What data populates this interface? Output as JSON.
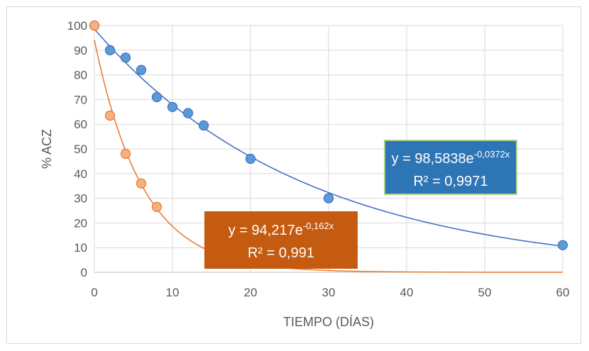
{
  "chart_data": {
    "type": "scatter",
    "xlabel": "TIEMPO (DÍAS)",
    "ylabel": "% ACZ",
    "xlim": [
      0,
      60
    ],
    "ylim": [
      0,
      100
    ],
    "xticks": [
      0,
      10,
      20,
      30,
      40,
      50,
      60
    ],
    "yticks": [
      0,
      10,
      20,
      30,
      40,
      50,
      60,
      70,
      80,
      90,
      100
    ],
    "grid": true,
    "legend": "none",
    "series": [
      {
        "color": "#5b9bd5",
        "line_color": "#4472c4",
        "points": [
          [
            0,
            100
          ],
          [
            2,
            90
          ],
          [
            4,
            87
          ],
          [
            6,
            82
          ],
          [
            8,
            71
          ],
          [
            10,
            67
          ],
          [
            12,
            64.5
          ],
          [
            14,
            59.5
          ],
          [
            20,
            46
          ],
          [
            30,
            30
          ],
          [
            60,
            11
          ]
        ],
        "trendline": {
          "type": "exponential",
          "a": 98.5838,
          "b": -0.0372,
          "equation_base": "y = 98,5838e",
          "equation_exp": "-0,0372x",
          "r2_text": "R² = 0,9971",
          "label_bg": "#2e75b6",
          "label_border": "#a9d18e"
        }
      },
      {
        "color": "#f4b183",
        "line_color": "#ed7d31",
        "points": [
          [
            0,
            100
          ],
          [
            2,
            63.5
          ],
          [
            4,
            48
          ],
          [
            6,
            36
          ],
          [
            8,
            26.5
          ]
        ],
        "trendline": {
          "type": "exponential",
          "a": 94.217,
          "b": -0.162,
          "equation_base": "y = 94,217e",
          "equation_exp": "-0,162x",
          "r2_text": "R² = 0,991",
          "label_bg": "#c55a11",
          "label_border": "#c55a11"
        }
      }
    ]
  }
}
